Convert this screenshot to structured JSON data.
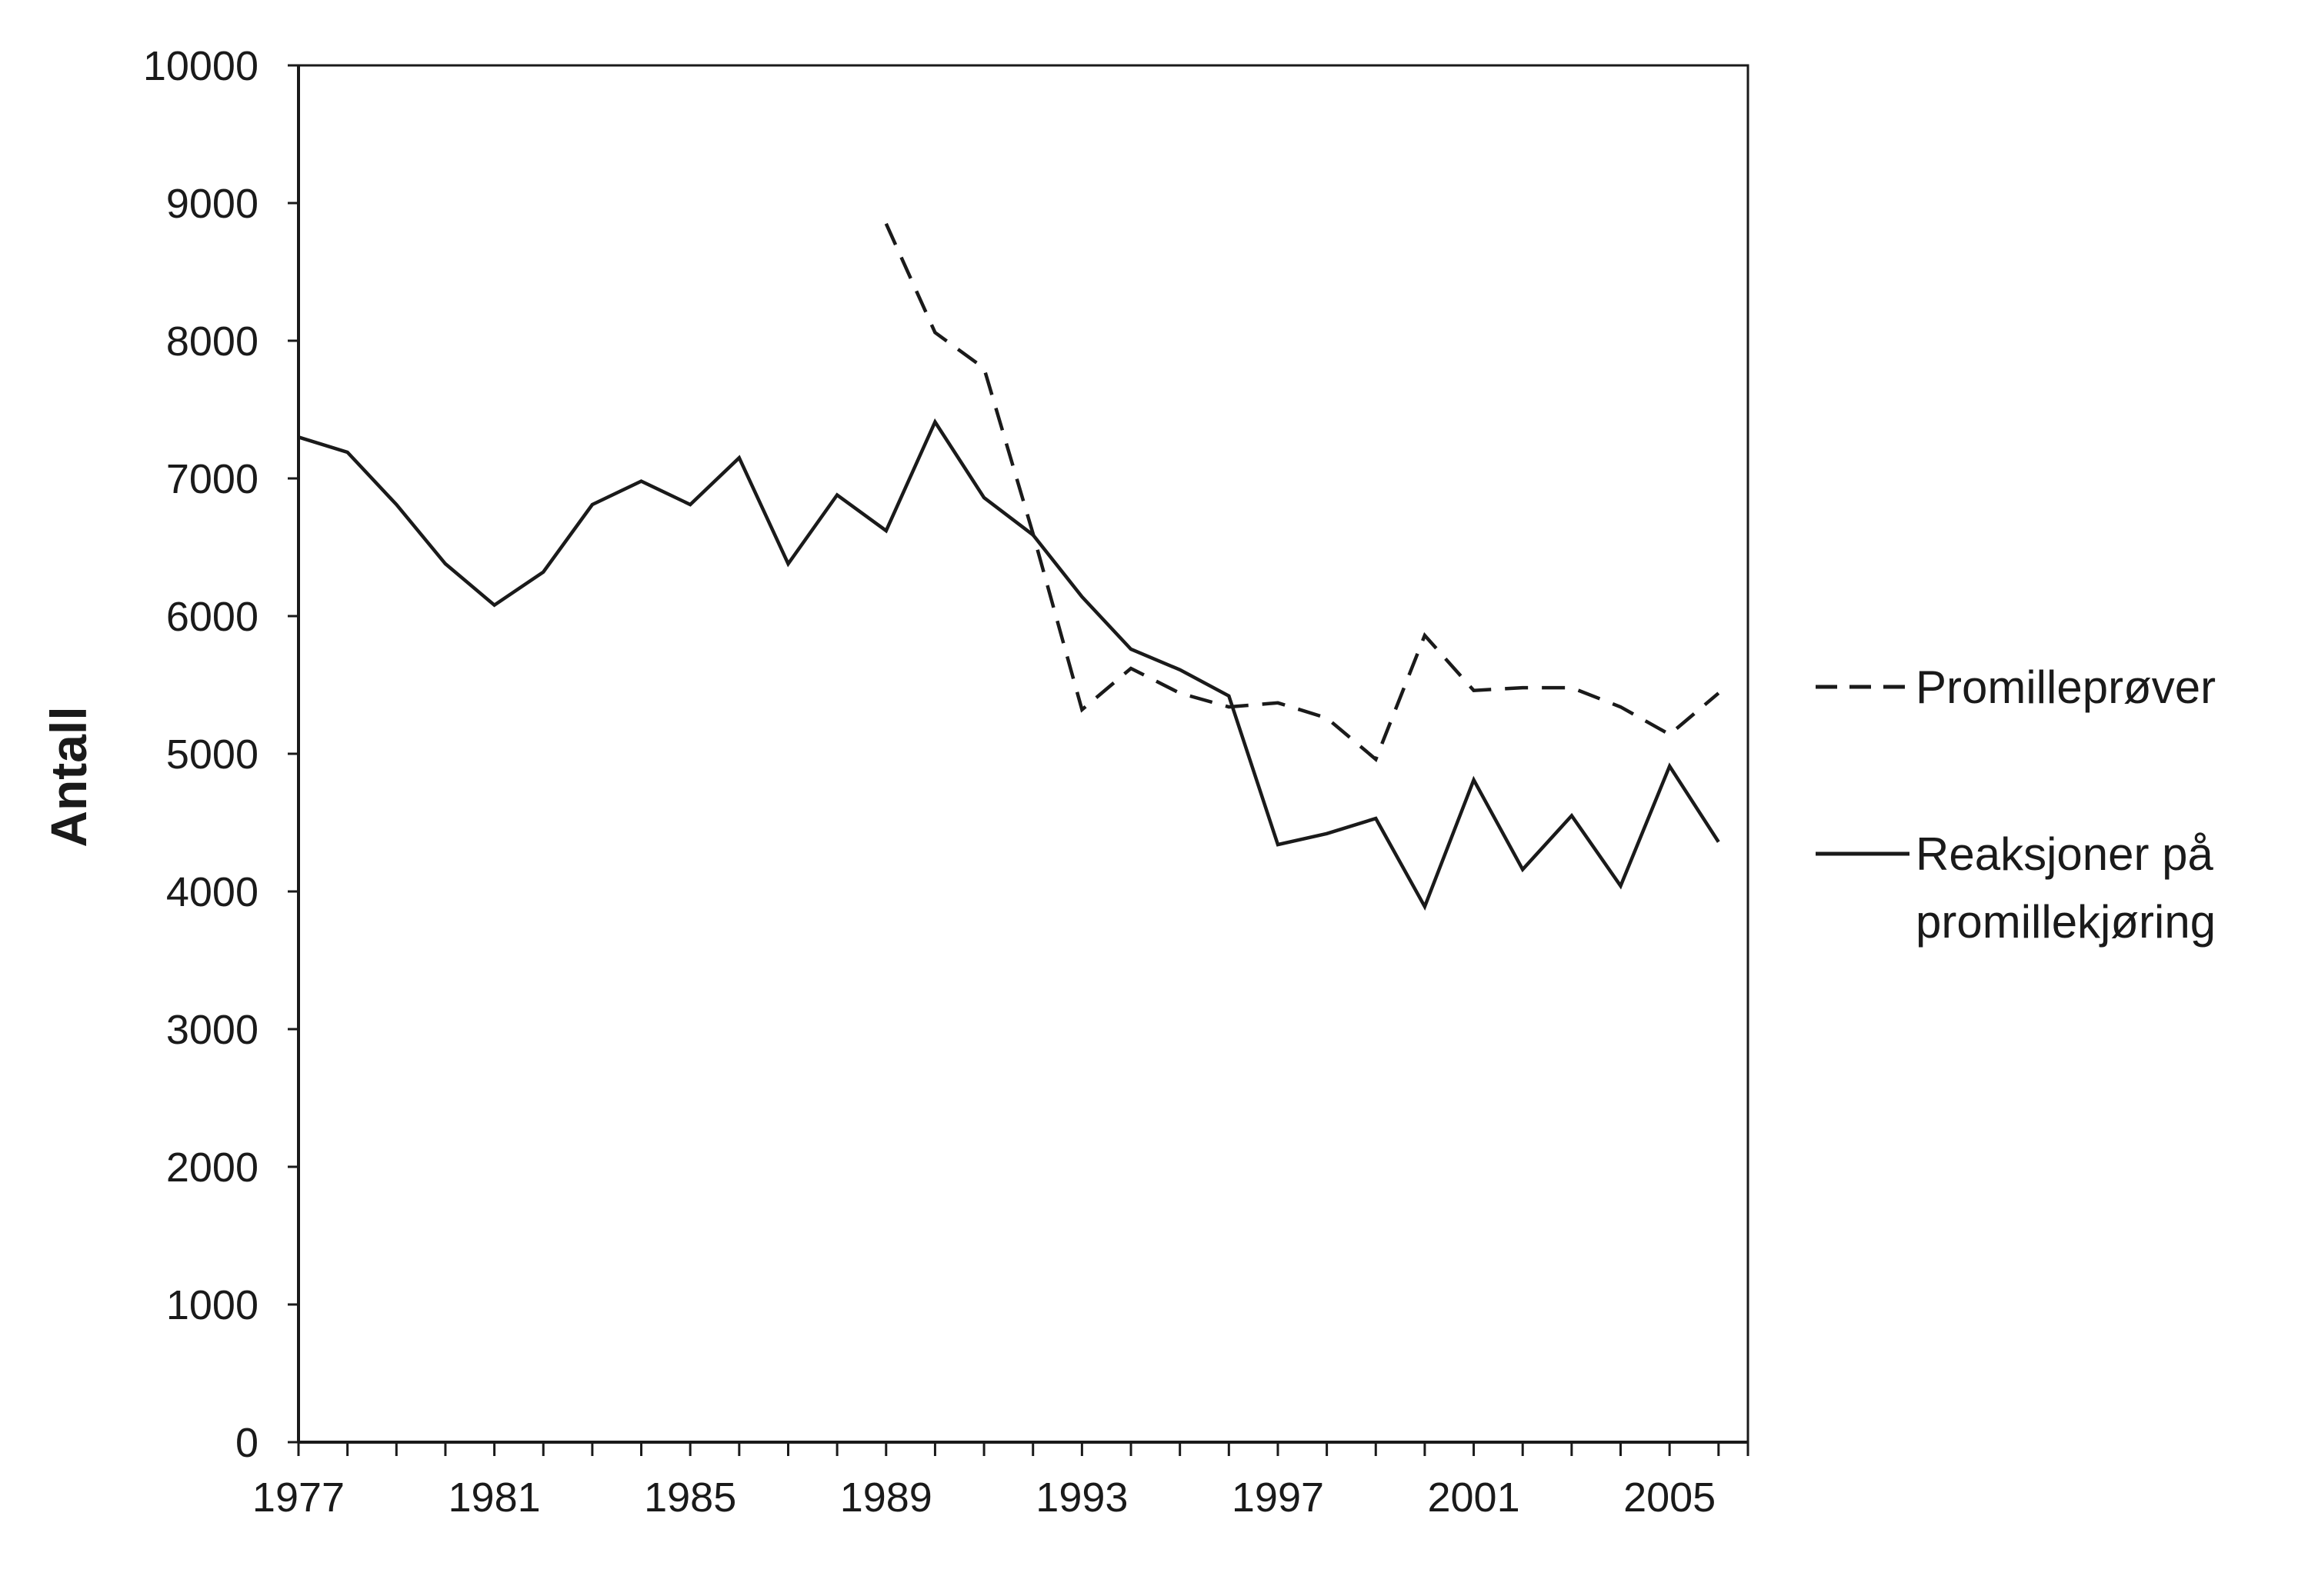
{
  "chart_data": {
    "type": "line",
    "title": "",
    "xlabel": "",
    "ylabel": "Antall",
    "xlim": [
      1977,
      2006
    ],
    "ylim": [
      0,
      10000
    ],
    "yticks": [
      0,
      1000,
      2000,
      3000,
      4000,
      5000,
      6000,
      7000,
      8000,
      9000,
      10000
    ],
    "ytick_labels": [
      "0",
      "1000",
      "2000",
      "3000",
      "4000",
      "5000",
      "6000",
      "7000",
      "8000",
      "9000",
      "10000"
    ],
    "xticks": [
      1977,
      1981,
      1985,
      1989,
      1993,
      1997,
      2001,
      2005
    ],
    "xtick_labels": [
      "1977",
      "1981",
      "1985",
      "1989",
      "1993",
      "1997",
      "2001",
      "2005"
    ],
    "grid": false,
    "legend_position": "right",
    "series": [
      {
        "name": "Promilleprøver",
        "style": "dashed",
        "color": "#1a1a1a",
        "x": [
          1989,
          1990,
          1991,
          1992,
          1993,
          1994,
          1995,
          1996,
          1997,
          1998,
          1999,
          2000,
          2001,
          2002,
          2003,
          2004,
          2005,
          2006
        ],
        "y": [
          8850,
          8060,
          7800,
          6600,
          5320,
          5620,
          5440,
          5340,
          5370,
          5260,
          4960,
          5860,
          5460,
          5480,
          5480,
          5340,
          5140,
          5440
        ]
      },
      {
        "name": "Reaksjoner på promillekjøring",
        "style": "solid",
        "color": "#1a1a1a",
        "x": [
          1977,
          1978,
          1979,
          1980,
          1981,
          1982,
          1983,
          1984,
          1985,
          1986,
          1987,
          1988,
          1989,
          1990,
          1991,
          1992,
          1993,
          1994,
          1995,
          1996,
          1997,
          1998,
          1999,
          2000,
          2001,
          2002,
          2003,
          2004,
          2005,
          2006
        ],
        "y": [
          7300,
          7190,
          6810,
          6380,
          6080,
          6320,
          6810,
          6980,
          6810,
          7150,
          6380,
          6880,
          6620,
          7410,
          6860,
          6590,
          6140,
          5760,
          5610,
          5420,
          4340,
          4420,
          4530,
          3890,
          4810,
          4160,
          4550,
          4040,
          4910,
          4360
        ]
      }
    ]
  }
}
